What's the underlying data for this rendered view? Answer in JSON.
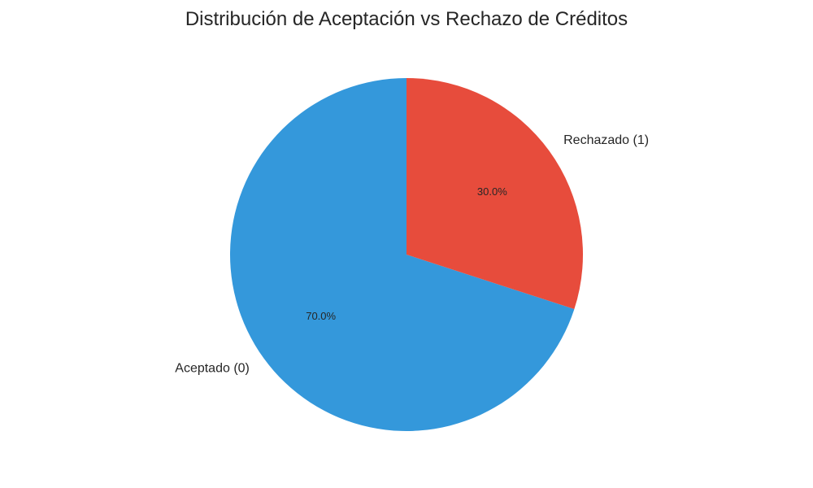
{
  "chart_data": {
    "type": "pie",
    "title": "Distribución de Aceptación vs Rechazo de Créditos",
    "categories": [
      "Aceptado (0)",
      "Rechazado (1)"
    ],
    "values": [
      70.0,
      30.0
    ],
    "percent_labels": [
      "70.0%",
      "30.0%"
    ],
    "colors": [
      "#3498db",
      "#e74c3c"
    ],
    "start_angle_deg": 90,
    "direction": "counterclockwise",
    "legend": "none"
  }
}
